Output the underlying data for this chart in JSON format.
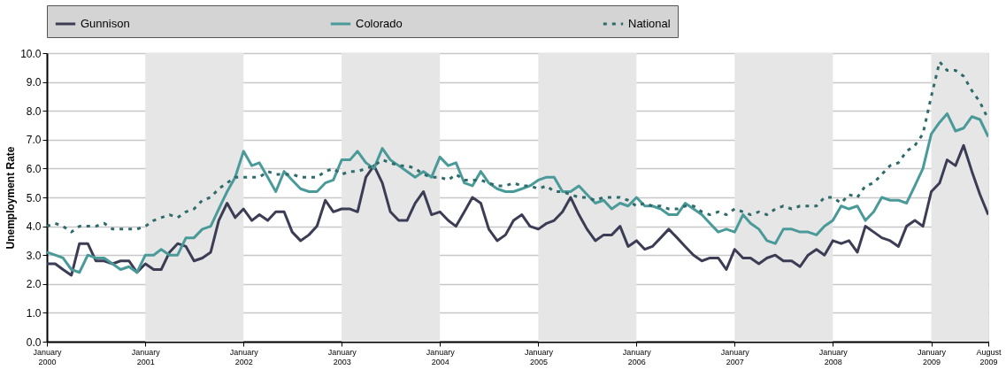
{
  "chart_data": {
    "type": "line",
    "ylabel": "Unemployment Rate",
    "x": [
      "2000-01",
      "2000-02",
      "2000-03",
      "2000-04",
      "2000-05",
      "2000-06",
      "2000-07",
      "2000-08",
      "2000-09",
      "2000-10",
      "2000-11",
      "2000-12",
      "2001-01",
      "2001-02",
      "2001-03",
      "2001-04",
      "2001-05",
      "2001-06",
      "2001-07",
      "2001-08",
      "2001-09",
      "2001-10",
      "2001-11",
      "2001-12",
      "2002-01",
      "2002-02",
      "2002-03",
      "2002-04",
      "2002-05",
      "2002-06",
      "2002-07",
      "2002-08",
      "2002-09",
      "2002-10",
      "2002-11",
      "2002-12",
      "2003-01",
      "2003-02",
      "2003-03",
      "2003-04",
      "2003-05",
      "2003-06",
      "2003-07",
      "2003-08",
      "2003-09",
      "2003-10",
      "2003-11",
      "2003-12",
      "2004-01",
      "2004-02",
      "2004-03",
      "2004-04",
      "2004-05",
      "2004-06",
      "2004-07",
      "2004-08",
      "2004-09",
      "2004-10",
      "2004-11",
      "2004-12",
      "2005-01",
      "2005-02",
      "2005-03",
      "2005-04",
      "2005-05",
      "2005-06",
      "2005-07",
      "2005-08",
      "2005-09",
      "2005-10",
      "2005-11",
      "2005-12",
      "2006-01",
      "2006-02",
      "2006-03",
      "2006-04",
      "2006-05",
      "2006-06",
      "2006-07",
      "2006-08",
      "2006-09",
      "2006-10",
      "2006-11",
      "2006-12",
      "2007-01",
      "2007-02",
      "2007-03",
      "2007-04",
      "2007-05",
      "2007-06",
      "2007-07",
      "2007-08",
      "2007-09",
      "2007-10",
      "2007-11",
      "2007-12",
      "2008-01",
      "2008-02",
      "2008-03",
      "2008-04",
      "2008-05",
      "2008-06",
      "2008-07",
      "2008-08",
      "2008-09",
      "2008-10",
      "2008-11",
      "2008-12",
      "2009-01",
      "2009-02",
      "2009-03",
      "2009-04",
      "2009-05",
      "2009-06",
      "2009-07",
      "2009-08"
    ],
    "series": [
      {
        "name": "Gunnison",
        "color": "#3c3c55",
        "line_style": "solid",
        "values": [
          2.7,
          2.7,
          2.5,
          2.3,
          3.4,
          3.4,
          2.8,
          2.8,
          2.7,
          2.8,
          2.8,
          2.4,
          2.7,
          2.5,
          2.5,
          3.1,
          3.4,
          3.3,
          2.8,
          2.9,
          3.1,
          4.2,
          4.8,
          4.3,
          4.6,
          4.2,
          4.4,
          4.2,
          4.5,
          4.5,
          3.8,
          3.5,
          3.7,
          4.0,
          4.9,
          4.5,
          4.6,
          4.6,
          4.5,
          5.7,
          6.1,
          5.5,
          4.5,
          4.2,
          4.2,
          4.8,
          5.2,
          4.4,
          4.5,
          4.2,
          4.0,
          4.5,
          5.0,
          4.8,
          3.9,
          3.5,
          3.7,
          4.2,
          4.4,
          4.0,
          3.9,
          4.1,
          4.2,
          4.5,
          5.0,
          4.4,
          3.9,
          3.5,
          3.7,
          3.7,
          4.0,
          3.3,
          3.5,
          3.2,
          3.3,
          3.6,
          3.9,
          3.6,
          3.3,
          3.0,
          2.8,
          2.9,
          2.9,
          2.5,
          3.2,
          2.9,
          2.9,
          2.7,
          2.9,
          3.0,
          2.8,
          2.8,
          2.6,
          3.0,
          3.2,
          3.0,
          3.5,
          3.4,
          3.5,
          3.1,
          4.0,
          3.8,
          3.6,
          3.5,
          3.3,
          4.0,
          4.2,
          4.0,
          5.2,
          5.5,
          6.3,
          6.1,
          6.8,
          5.9,
          5.1,
          4.4
        ]
      },
      {
        "name": "Colorado",
        "color": "#4a9a9a",
        "line_style": "solid",
        "values": [
          3.1,
          3.0,
          2.9,
          2.5,
          2.4,
          3.0,
          2.9,
          2.9,
          2.7,
          2.5,
          2.6,
          2.4,
          3.0,
          3.0,
          3.2,
          3.0,
          3.0,
          3.6,
          3.6,
          3.9,
          4.0,
          4.6,
          5.2,
          5.7,
          6.6,
          6.1,
          6.2,
          5.7,
          5.2,
          5.9,
          5.6,
          5.3,
          5.2,
          5.2,
          5.5,
          5.6,
          6.3,
          6.3,
          6.6,
          6.2,
          6.0,
          6.7,
          6.3,
          6.1,
          5.9,
          5.7,
          5.9,
          5.7,
          6.4,
          6.1,
          6.2,
          5.5,
          5.4,
          5.9,
          5.5,
          5.3,
          5.2,
          5.2,
          5.3,
          5.4,
          5.6,
          5.7,
          5.7,
          5.2,
          5.2,
          5.4,
          5.1,
          4.8,
          4.9,
          4.6,
          4.8,
          4.7,
          5.0,
          4.7,
          4.7,
          4.6,
          4.4,
          4.4,
          4.8,
          4.6,
          4.4,
          4.1,
          3.8,
          3.9,
          3.8,
          4.4,
          4.1,
          3.9,
          3.5,
          3.4,
          3.9,
          3.9,
          3.8,
          3.8,
          3.7,
          4.0,
          4.2,
          4.7,
          4.6,
          4.7,
          4.2,
          4.5,
          5.0,
          4.9,
          4.9,
          4.8,
          5.4,
          6.0,
          7.2,
          7.6,
          7.9,
          7.3,
          7.4,
          7.8,
          7.7,
          7.1
        ]
      },
      {
        "name": "National",
        "color": "#2f6b6b",
        "line_style": "dotted",
        "values": [
          4.0,
          4.1,
          4.0,
          3.8,
          4.0,
          4.0,
          4.0,
          4.1,
          3.9,
          3.9,
          3.9,
          3.9,
          4.0,
          4.2,
          4.3,
          4.4,
          4.3,
          4.5,
          4.6,
          4.9,
          5.0,
          5.3,
          5.5,
          5.7,
          5.7,
          5.7,
          5.7,
          5.9,
          5.8,
          5.8,
          5.8,
          5.7,
          5.7,
          5.7,
          5.9,
          6.0,
          5.8,
          5.9,
          5.9,
          6.0,
          6.1,
          6.3,
          6.2,
          6.1,
          6.1,
          6.0,
          5.8,
          5.7,
          5.7,
          5.6,
          5.8,
          5.6,
          5.6,
          5.6,
          5.5,
          5.4,
          5.4,
          5.5,
          5.4,
          5.4,
          5.3,
          5.4,
          5.2,
          5.2,
          5.1,
          5.0,
          5.0,
          4.9,
          5.0,
          5.0,
          5.0,
          4.9,
          4.7,
          4.8,
          4.7,
          4.7,
          4.6,
          4.6,
          4.7,
          4.7,
          4.5,
          4.4,
          4.5,
          4.4,
          4.6,
          4.5,
          4.4,
          4.5,
          4.4,
          4.6,
          4.7,
          4.6,
          4.7,
          4.7,
          4.7,
          5.0,
          5.0,
          4.8,
          5.1,
          5.0,
          5.4,
          5.5,
          5.8,
          6.1,
          6.2,
          6.6,
          6.8,
          7.2,
          8.5,
          9.7,
          9.4,
          9.4,
          9.2,
          8.7,
          8.3,
          7.7
        ]
      }
    ],
    "xlim": [
      "2000-01",
      "2009-08"
    ],
    "xticks": [
      {
        "value": "2000-01",
        "label": "January 2000"
      },
      {
        "value": "2001-01",
        "label": "January 2001"
      },
      {
        "value": "2002-01",
        "label": "January 2002"
      },
      {
        "value": "2003-01",
        "label": "January 2003"
      },
      {
        "value": "2004-01",
        "label": "January 2004"
      },
      {
        "value": "2005-01",
        "label": "January 2005"
      },
      {
        "value": "2006-01",
        "label": "January 2006"
      },
      {
        "value": "2007-01",
        "label": "January 2007"
      },
      {
        "value": "2008-01",
        "label": "January 2008"
      },
      {
        "value": "2009-01",
        "label": "January 2009"
      },
      {
        "value": "2009-08",
        "label": "August 2009"
      }
    ],
    "ylim": [
      0,
      10
    ],
    "yticks": [
      {
        "value": 0,
        "label": "0.0"
      },
      {
        "value": 1,
        "label": "1.0"
      },
      {
        "value": 2,
        "label": "2.0"
      },
      {
        "value": 3,
        "label": "3.0"
      },
      {
        "value": 4,
        "label": "4.0"
      },
      {
        "value": 5,
        "label": "5.0"
      },
      {
        "value": 6,
        "label": "6.0"
      },
      {
        "value": 7,
        "label": "7.0"
      },
      {
        "value": 8,
        "label": "8.0"
      },
      {
        "value": 9,
        "label": "9.0"
      },
      {
        "value": 10,
        "label": "10.0"
      }
    ],
    "bands": [
      {
        "axis": "x",
        "from": "2001-01",
        "to": "2002-01",
        "color": "#e6e6e6"
      },
      {
        "axis": "x",
        "from": "2003-01",
        "to": "2004-01",
        "color": "#e6e6e6"
      },
      {
        "axis": "x",
        "from": "2005-01",
        "to": "2006-01",
        "color": "#e6e6e6"
      },
      {
        "axis": "x",
        "from": "2007-01",
        "to": "2008-01",
        "color": "#e6e6e6"
      },
      {
        "axis": "x",
        "from": "2009-01",
        "to": "2009-08",
        "color": "#e6e6e6"
      }
    ],
    "grid": "y",
    "legend": "top",
    "marker": "none"
  }
}
